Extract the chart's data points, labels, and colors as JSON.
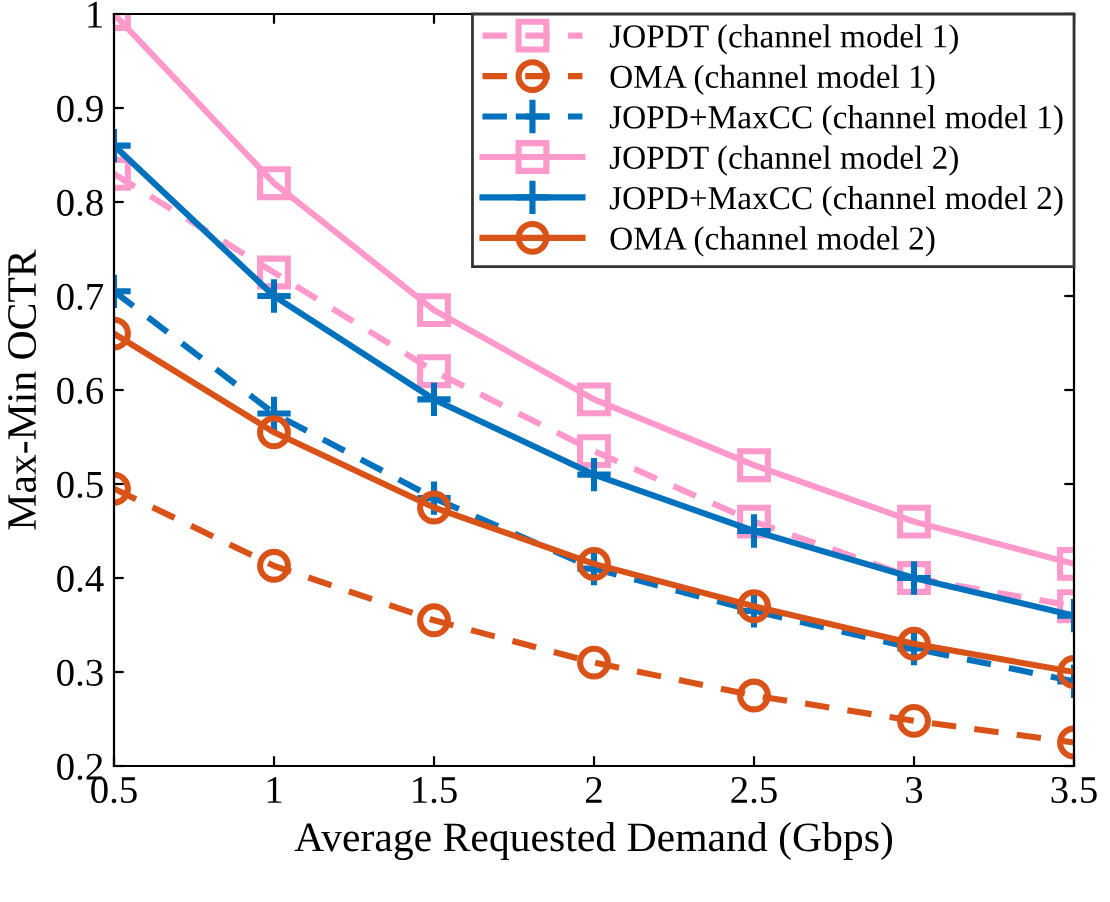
{
  "chart_data": {
    "type": "line",
    "xlabel": "Average Requested Demand (Gbps)",
    "ylabel": "Max-Min OCTR",
    "x": [
      0.5,
      1,
      1.5,
      2,
      2.5,
      3,
      3.5
    ],
    "xlim": [
      0.5,
      3.5
    ],
    "xticks": [
      0.5,
      1,
      1.5,
      2,
      2.5,
      3,
      3.5
    ],
    "ylim": [
      0.2,
      1
    ],
    "yticks": [
      0.2,
      0.3,
      0.4,
      0.5,
      0.6,
      0.7,
      0.8,
      0.9,
      1
    ],
    "grid": false,
    "legend": "top right",
    "series": [
      {
        "name": "JOPDT (channel model 1)",
        "color": "#ff99cc",
        "marker": "square",
        "line_style": "dashed",
        "values": [
          0.83,
          0.725,
          0.62,
          0.535,
          0.46,
          0.4,
          0.37
        ]
      },
      {
        "name": "OMA (channel model 1)",
        "color": "#d95319",
        "marker": "circle",
        "line_style": "dashed",
        "values": [
          0.495,
          0.413,
          0.355,
          0.31,
          0.275,
          0.248,
          0.225
        ]
      },
      {
        "name": "JOPD+MaxCC (channel model 1)",
        "color": "#0072bd",
        "marker": "cross",
        "line_style": "dashed",
        "values": [
          0.705,
          0.575,
          0.485,
          0.41,
          0.365,
          0.325,
          0.29
        ]
      },
      {
        "name": "JOPDT (channel model 2)",
        "color": "#ff99cc",
        "marker": "square",
        "line_style": "solid",
        "values": [
          1.0,
          0.82,
          0.685,
          0.59,
          0.52,
          0.46,
          0.415
        ]
      },
      {
        "name": "JOPD+MaxCC (channel model 2)",
        "color": "#0072bd",
        "marker": "cross",
        "line_style": "solid",
        "values": [
          0.86,
          0.7,
          0.59,
          0.51,
          0.45,
          0.4,
          0.36
        ]
      },
      {
        "name": "OMA (channel model 2)",
        "color": "#d95319",
        "marker": "circle",
        "line_style": "solid",
        "values": [
          0.66,
          0.555,
          0.475,
          0.415,
          0.37,
          0.33,
          0.3
        ]
      }
    ]
  }
}
